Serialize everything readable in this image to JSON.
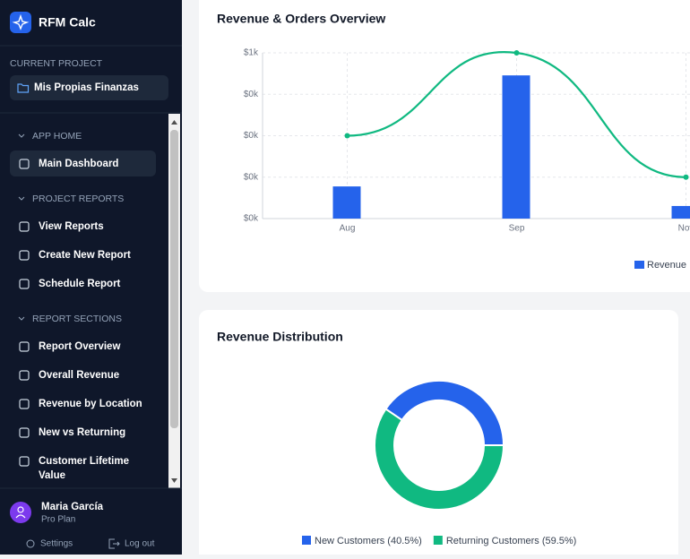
{
  "sidebar": {
    "app_name": "RFM Calc",
    "current_project_label": "CURRENT PROJECT",
    "project": "Mis Propias Finanzas",
    "sections": [
      {
        "title": "APP HOME",
        "items": [
          "Main Dashboard"
        ]
      },
      {
        "title": "PROJECT REPORTS",
        "items": [
          "View Reports",
          "Create New Report",
          "Schedule Report"
        ]
      },
      {
        "title": "REPORT SECTIONS",
        "items": [
          "Report Overview",
          "Overall Revenue",
          "Revenue by Location",
          "New vs Returning",
          "Customer Lifetime Value"
        ]
      }
    ],
    "user": {
      "name": "Maria García",
      "plan": "Pro Plan"
    },
    "footer": [
      "Settings",
      "Log out"
    ]
  },
  "chart_data": [
    {
      "type": "bar",
      "title": "Revenue & Orders Overview",
      "categories": [
        "Aug",
        "Sep",
        "Nov"
      ],
      "series": [
        {
          "name": "Revenue",
          "color": "#2563eb",
          "values": [
            97,
            432,
            38
          ]
        },
        {
          "type": "line",
          "color": "#10b981",
          "axis": "y2",
          "values": [
            2,
            4,
            1
          ]
        }
      ],
      "ylim": [
        0,
        500
      ],
      "yticks": [
        {
          "value": 0,
          "label": "$0k"
        },
        {
          "value": 125,
          "label": "$0k"
        },
        {
          "value": 250,
          "label": "$0k"
        },
        {
          "value": 375,
          "label": "$0k"
        },
        {
          "value": 500,
          "label": "$1k"
        }
      ],
      "y2lim": [
        0,
        4
      ],
      "grid": true
    },
    {
      "type": "donut",
      "title": "Revenue Distribution",
      "values": [
        40.5,
        59.5
      ],
      "value_labels": [
        "New Customers (40.5%)",
        "Returning Customers (59.5%)"
      ],
      "colors": [
        "#2563eb",
        "#10b981"
      ]
    }
  ]
}
